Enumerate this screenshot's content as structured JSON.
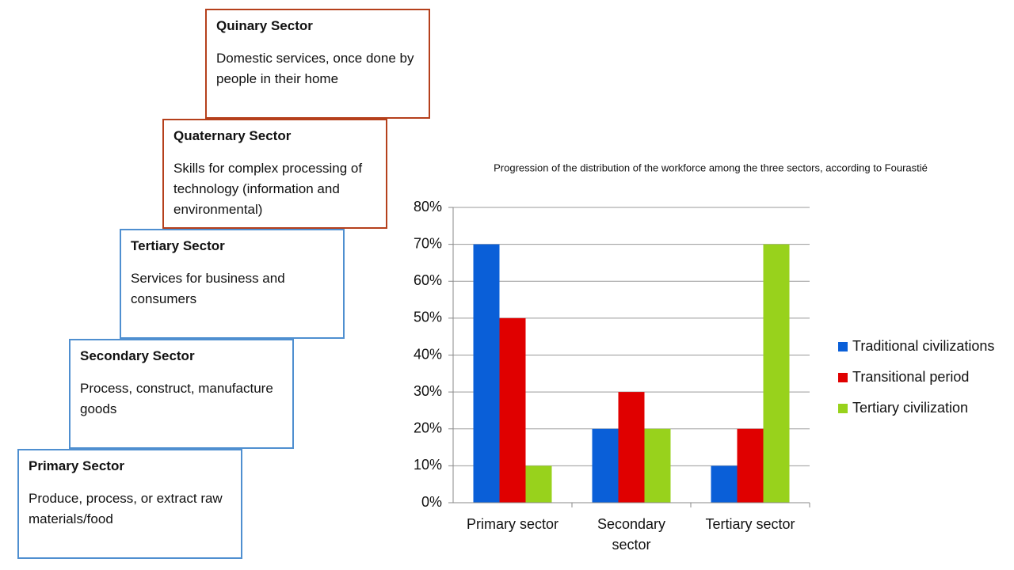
{
  "boxes": [
    {
      "title": "Quinary Sector",
      "description": "Domestic services, once done by people in their home"
    },
    {
      "title": "Quaternary Sector",
      "description": "Skills for complex processing of technology (information and environmental)"
    },
    {
      "title": "Tertiary Sector",
      "description": "Services for business and consumers"
    },
    {
      "title": "Secondary Sector",
      "description": "Process, construct, manufacture goods"
    },
    {
      "title": "Primary Sector",
      "description": "Produce, process, or extract raw materials/food"
    }
  ],
  "chart_data": {
    "type": "bar",
    "title": "Progression of the distribution of the workforce among the three sectors, according to Fourastié",
    "categories": [
      "Primary sector",
      "Secondary sector",
      "Tertiary sector"
    ],
    "series": [
      {
        "name": "Traditional civilizations",
        "color": "#0a5fd8",
        "values": [
          70,
          20,
          10
        ]
      },
      {
        "name": "Transitional period",
        "color": "#e00000",
        "values": [
          50,
          30,
          20
        ]
      },
      {
        "name": "Tertiary civilization",
        "color": "#98d21c",
        "values": [
          10,
          20,
          70
        ]
      }
    ],
    "ylim": [
      0,
      80
    ],
    "yticks": [
      {
        "value": 0,
        "label": "0%"
      },
      {
        "value": 10,
        "label": "10%"
      },
      {
        "value": 20,
        "label": "20%"
      },
      {
        "value": 30,
        "label": "30%"
      },
      {
        "value": 40,
        "label": "40%"
      },
      {
        "value": 50,
        "label": "50%"
      },
      {
        "value": 60,
        "label": "60%"
      },
      {
        "value": 70,
        "label": "70%"
      },
      {
        "value": 80,
        "label": "80%"
      }
    ],
    "grid": true,
    "legend": "right"
  }
}
